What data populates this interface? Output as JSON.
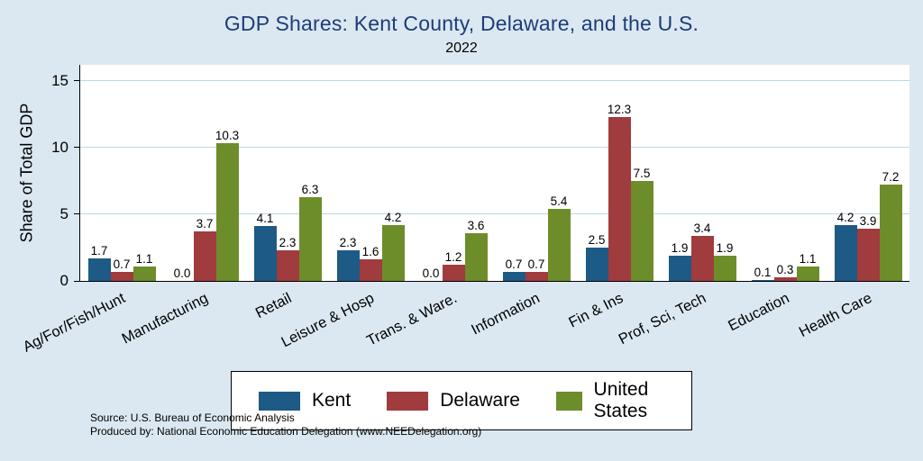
{
  "page": {
    "title": "GDP Shares: Kent County, Delaware, and the U.S.",
    "subtitle": "2022",
    "source_line1": "Source: U.S. Bureau of Economic Analysis",
    "source_line2": "Produced by: National Economic Education Delegation (www.NEEDelegation.org)"
  },
  "colors": {
    "background": "#dbe8f1",
    "plot_background": "#ffffff",
    "gridline": "#bcd7ea",
    "title_text": "#1e3c78",
    "kent": "#1d5a85",
    "delaware": "#a03b3e",
    "united_states": "#6d8d2a"
  },
  "chart_data": {
    "type": "bar",
    "title": "GDP Shares: Kent County, Delaware, and the U.S.",
    "subtitle": "2022",
    "xlabel": "",
    "ylabel": "Share of Total GDP",
    "ylim": [
      0,
      15
    ],
    "yticks": [
      0,
      5,
      10,
      15
    ],
    "grid": true,
    "legend_position": "bottom",
    "categories": [
      "Ag/For/Fish/Hunt",
      "Manufacturing",
      "Retail",
      "Leisure & Hosp",
      "Trans. & Ware.",
      "Information",
      "Fin & Ins",
      "Prof, Sci, Tech",
      "Education",
      "Health Care"
    ],
    "series": [
      {
        "name": "Kent",
        "color": "#1d5a85",
        "values": [
          1.7,
          0.0,
          4.1,
          2.3,
          0.0,
          0.7,
          2.5,
          1.9,
          0.1,
          4.2
        ]
      },
      {
        "name": "Delaware",
        "color": "#a03b3e",
        "values": [
          0.7,
          3.7,
          2.3,
          1.6,
          1.2,
          0.7,
          12.3,
          3.4,
          0.3,
          3.9
        ]
      },
      {
        "name": "United States",
        "color": "#6d8d2a",
        "values": [
          1.1,
          10.3,
          6.3,
          4.2,
          3.6,
          5.4,
          7.5,
          1.9,
          1.1,
          7.2
        ]
      }
    ]
  }
}
